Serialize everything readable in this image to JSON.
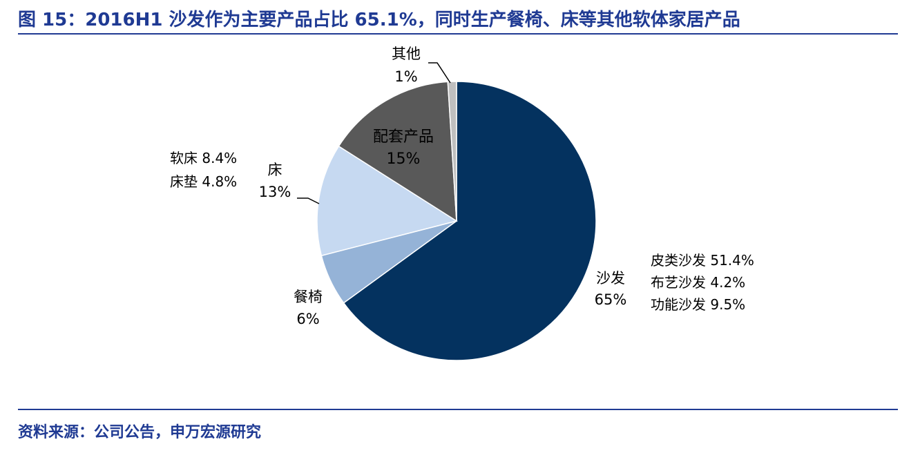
{
  "header": {
    "title": "图 15：2016H1 沙发作为主要产品占比 65.1%，同时生产餐椅、床等其他软体家居产品"
  },
  "footer": {
    "source": "资料来源：公司公告，申万宏源研究"
  },
  "colors": {
    "accent": "#1f3a93",
    "sofa": "#04325f",
    "dining_chair": "#95b3d7",
    "bed": "#c6d9f1",
    "accessories": "#595959",
    "other": "#bfbfbf"
  },
  "chart_data": {
    "type": "pie",
    "title": "",
    "start": "12 o'clock",
    "direction": "clockwise",
    "slices": [
      {
        "name": "沙发",
        "value": 65,
        "label": "65%",
        "color": "#04325f"
      },
      {
        "name": "餐椅",
        "value": 6,
        "label": "6%",
        "color": "#95b3d7"
      },
      {
        "name": "床",
        "value": 13,
        "label": "13%",
        "color": "#c6d9f1"
      },
      {
        "name": "配套产品",
        "value": 15,
        "label": "15%",
        "color": "#595959"
      },
      {
        "name": "其他",
        "value": 1,
        "label": "1%",
        "color": "#bfbfbf"
      }
    ],
    "annotations": {
      "sofa_breakdown": [
        "皮类沙发 51.4%",
        "布艺沙发 4.2%",
        "功能沙发 9.5%"
      ],
      "bed_breakdown": [
        "软床 8.4%",
        "床垫 4.8%"
      ]
    }
  }
}
